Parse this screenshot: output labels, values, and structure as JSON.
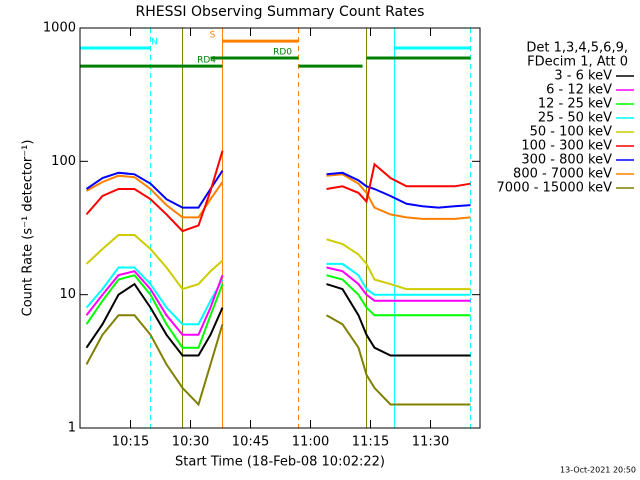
{
  "chart_data": {
    "type": "line",
    "title": "RHESSI Observing Summary Count Rates",
    "x_label": "Start Time (18-Feb-08 10:02:22)",
    "y_label": "Count Rate (s⁻¹ detector⁻¹)",
    "footer": "13-Oct-2021 20:50",
    "legend_header": [
      "Det 1,3,4,5,6,9,",
      "FDecim 1, Att 0"
    ],
    "log_y": true,
    "xlim": [
      "10:02:22",
      "11:42:22"
    ],
    "xticks": [
      "10:15",
      "10:30",
      "10:45",
      "11:00",
      "11:15",
      "11:30"
    ],
    "ylim": [
      1,
      1000
    ],
    "yticks": [
      1,
      10,
      100,
      1000
    ],
    "x": [
      "10:04",
      "10:08",
      "10:12",
      "10:16",
      "10:20",
      "10:24",
      "10:28",
      "10:32",
      "10:35",
      "10:38",
      "10:44",
      "11:04",
      "11:08",
      "11:12",
      "11:14",
      "11:16",
      "11:20",
      "11:24",
      "11:28",
      "11:32",
      "11:36",
      "11:40"
    ],
    "series": [
      {
        "name": "3 - 6 keV",
        "color": "#000000",
        "values": [
          4,
          6,
          10,
          12,
          8,
          5,
          3.5,
          3.5,
          5,
          8,
          null,
          12,
          11,
          7,
          5,
          4,
          3.5,
          3.5,
          3.5,
          3.5,
          3.5,
          3.5
        ]
      },
      {
        "name": "6 - 12 keV",
        "color": "#ff00ff",
        "values": [
          7,
          10,
          14,
          15,
          11,
          7,
          5,
          5,
          8,
          14,
          null,
          16,
          15,
          12,
          10,
          9,
          9,
          9,
          9,
          9,
          9,
          9
        ]
      },
      {
        "name": "12 - 25 keV",
        "color": "#00ff00",
        "values": [
          6,
          9,
          13,
          14,
          10,
          6,
          4,
          4,
          7,
          12,
          null,
          14,
          13,
          10,
          8,
          7,
          7,
          7,
          7,
          7,
          7,
          7
        ]
      },
      {
        "name": "25 - 50 keV",
        "color": "#00ffff",
        "values": [
          8,
          11,
          16,
          16,
          12,
          8,
          6,
          6,
          9,
          13,
          null,
          17,
          17,
          14,
          11,
          10,
          10,
          10,
          10,
          10,
          10,
          10
        ]
      },
      {
        "name": "50 - 100 keV",
        "color": "#cccc00",
        "values": [
          17,
          22,
          28,
          28,
          22,
          16,
          11,
          12,
          15,
          18,
          null,
          26,
          24,
          20,
          17,
          13,
          12,
          11,
          11,
          11,
          11,
          11
        ]
      },
      {
        "name": "100 - 300 keV",
        "color": "#ff0000",
        "values": [
          40,
          55,
          62,
          62,
          52,
          40,
          30,
          33,
          60,
          120,
          null,
          62,
          65,
          58,
          50,
          95,
          75,
          65,
          65,
          65,
          65,
          68
        ]
      },
      {
        "name": "300 - 800 keV",
        "color": "#0000ff",
        "values": [
          62,
          75,
          82,
          80,
          68,
          52,
          45,
          45,
          62,
          85,
          null,
          80,
          82,
          72,
          65,
          62,
          55,
          48,
          46,
          45,
          46,
          47
        ]
      },
      {
        "name": "800 - 7000 keV",
        "color": "#ff8000",
        "values": [
          60,
          70,
          78,
          76,
          62,
          47,
          38,
          38,
          52,
          70,
          null,
          78,
          80,
          68,
          58,
          45,
          40,
          38,
          37,
          37,
          37,
          38
        ]
      },
      {
        "name": "7000 - 15000 keV",
        "color": "#808000",
        "values": [
          3,
          5,
          7,
          7,
          5,
          3,
          2,
          1.5,
          3,
          6,
          null,
          7,
          6,
          4,
          2.5,
          2,
          1.5,
          1.5,
          1.5,
          1.5,
          1.5,
          1.5
        ]
      }
    ],
    "flags": [
      {
        "label": "N",
        "color": "#00ffff",
        "level": 708,
        "intervals": [
          [
            "10:02:22",
            "10:20"
          ],
          [
            "11:21",
            "11:40"
          ]
        ]
      },
      {
        "label": "S",
        "color": "#ff8000",
        "level": 798,
        "intervals": [
          [
            "10:38",
            "10:57"
          ]
        ]
      },
      {
        "label": "RD0",
        "color": "#008000",
        "level": 596,
        "intervals": [
          [
            "10:35",
            "10:57"
          ],
          [
            "11:14",
            "11:40"
          ]
        ]
      },
      {
        "label": "RD4",
        "color": "#008000",
        "level": 518,
        "intervals": [
          [
            "10:02:22",
            "10:38"
          ],
          [
            "10:57",
            "11:13"
          ]
        ]
      }
    ],
    "vlines": [
      {
        "x": "10:02:22",
        "color": "#00ffff",
        "dashed": false
      },
      {
        "x": "10:20",
        "color": "#00ffff",
        "dashed": true
      },
      {
        "x": "10:28",
        "color": "#808000",
        "dashed": false
      },
      {
        "x": "10:38",
        "color": "#ff8000",
        "dashed": false
      },
      {
        "x": "10:57",
        "color": "#ff8000",
        "dashed": true
      },
      {
        "x": "11:14",
        "color": "#808000",
        "dashed": false
      },
      {
        "x": "11:21",
        "color": "#00ffff",
        "dashed": false
      },
      {
        "x": "11:40",
        "color": "#00ffff",
        "dashed": true
      }
    ]
  }
}
